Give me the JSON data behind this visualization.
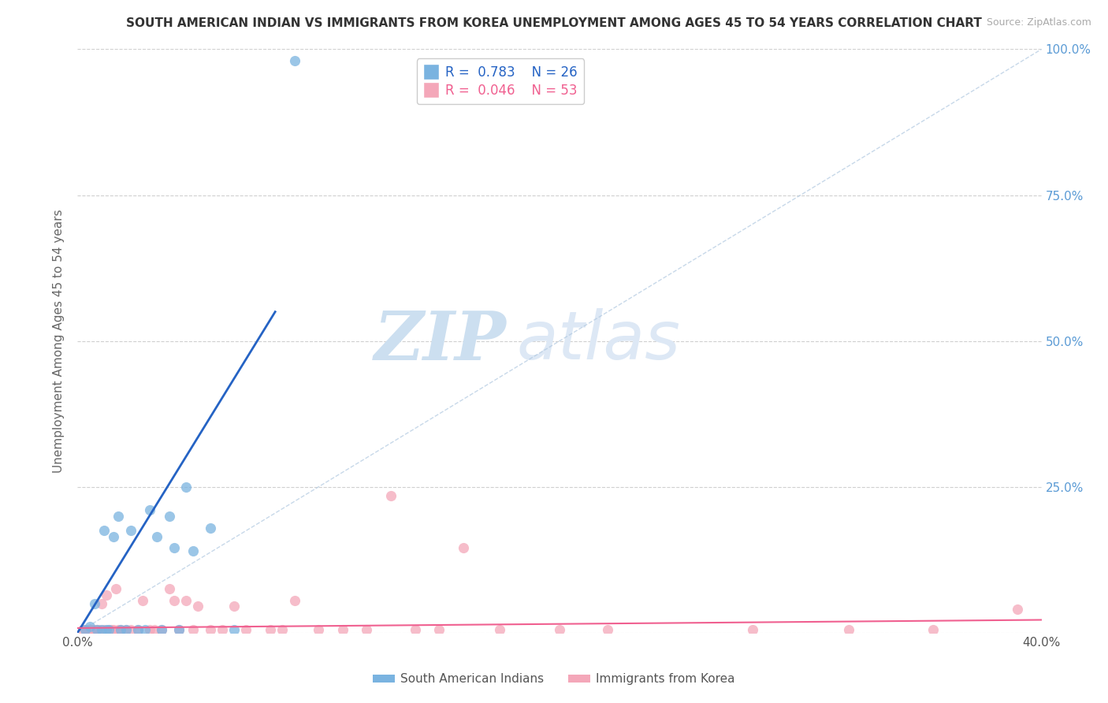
{
  "title": "SOUTH AMERICAN INDIAN VS IMMIGRANTS FROM KOREA UNEMPLOYMENT AMONG AGES 45 TO 54 YEARS CORRELATION CHART",
  "source": "Source: ZipAtlas.com",
  "ylabel": "Unemployment Among Ages 45 to 54 years",
  "xlim": [
    0.0,
    0.4
  ],
  "ylim": [
    0.0,
    1.0
  ],
  "xticks": [
    0.0,
    0.1,
    0.2,
    0.3,
    0.4
  ],
  "xticklabels": [
    "0.0%",
    "",
    "",
    "",
    "40.0%"
  ],
  "yticks": [
    0.0,
    0.25,
    0.5,
    0.75,
    1.0
  ],
  "right_yticklabels": [
    "",
    "25.0%",
    "50.0%",
    "75.0%",
    "100.0%"
  ],
  "blue_color": "#7ab3e0",
  "pink_color": "#f4a7b9",
  "blue_line_color": "#2563c4",
  "pink_line_color": "#f06090",
  "legend_label_blue": "South American Indians",
  "legend_label_pink": "Immigrants from Korea",
  "watermark_zip": "ZIP",
  "watermark_atlas": "atlas",
  "background_color": "#ffffff",
  "blue_scatter_x": [
    0.003,
    0.005,
    0.007,
    0.008,
    0.01,
    0.011,
    0.012,
    0.013,
    0.015,
    0.017,
    0.018,
    0.02,
    0.022,
    0.025,
    0.028,
    0.03,
    0.033,
    0.035,
    0.038,
    0.04,
    0.042,
    0.045,
    0.048,
    0.055,
    0.065,
    0.09
  ],
  "blue_scatter_y": [
    0.005,
    0.01,
    0.05,
    0.005,
    0.005,
    0.175,
    0.005,
    0.005,
    0.165,
    0.2,
    0.005,
    0.005,
    0.175,
    0.005,
    0.005,
    0.21,
    0.165,
    0.005,
    0.2,
    0.145,
    0.005,
    0.25,
    0.14,
    0.18,
    0.005,
    0.98
  ],
  "pink_scatter_x": [
    0.002,
    0.003,
    0.004,
    0.005,
    0.006,
    0.007,
    0.008,
    0.009,
    0.01,
    0.011,
    0.012,
    0.013,
    0.014,
    0.015,
    0.016,
    0.017,
    0.018,
    0.02,
    0.022,
    0.025,
    0.027,
    0.03,
    0.032,
    0.035,
    0.038,
    0.04,
    0.042,
    0.045,
    0.048,
    0.05,
    0.055,
    0.06,
    0.065,
    0.07,
    0.08,
    0.085,
    0.09,
    0.1,
    0.11,
    0.12,
    0.13,
    0.14,
    0.15,
    0.16,
    0.175,
    0.2,
    0.22,
    0.28,
    0.32,
    0.355,
    0.005,
    0.008,
    0.39
  ],
  "pink_scatter_y": [
    0.005,
    0.005,
    0.005,
    0.005,
    0.005,
    0.005,
    0.005,
    0.005,
    0.05,
    0.005,
    0.065,
    0.005,
    0.005,
    0.005,
    0.075,
    0.005,
    0.005,
    0.005,
    0.005,
    0.005,
    0.055,
    0.005,
    0.005,
    0.005,
    0.075,
    0.055,
    0.005,
    0.055,
    0.005,
    0.045,
    0.005,
    0.005,
    0.045,
    0.005,
    0.005,
    0.005,
    0.055,
    0.005,
    0.005,
    0.005,
    0.235,
    0.005,
    0.005,
    0.145,
    0.005,
    0.005,
    0.005,
    0.005,
    0.005,
    0.005,
    0.005,
    0.005,
    0.04
  ],
  "blue_line_x": [
    0.0,
    0.082
  ],
  "blue_line_y": [
    0.0,
    0.55
  ],
  "pink_line_x": [
    0.0,
    0.4
  ],
  "pink_line_y": [
    0.008,
    0.022
  ],
  "diag_line_x": [
    0.0,
    0.4
  ],
  "diag_line_y": [
    0.0,
    1.0
  ]
}
